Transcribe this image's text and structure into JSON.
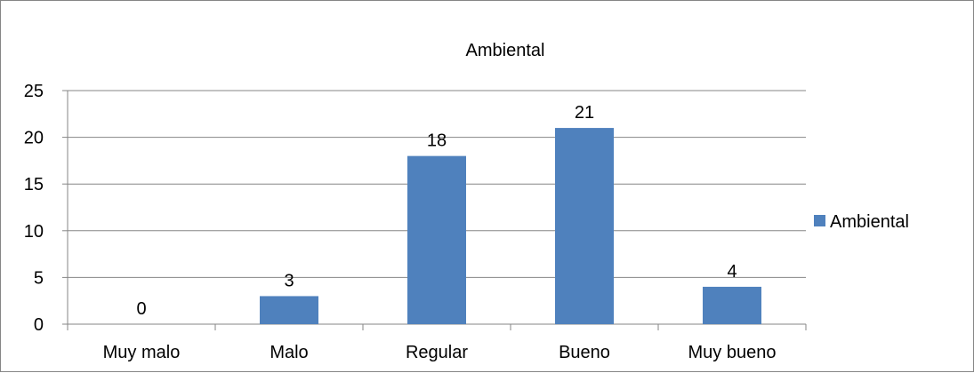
{
  "chart_data": {
    "type": "bar",
    "title": "Ambiental",
    "categories": [
      "Muy malo",
      "Malo",
      "Regular",
      "Bueno",
      "Muy bueno"
    ],
    "series": [
      {
        "name": "Ambiental",
        "values": [
          0,
          3,
          18,
          21,
          4
        ],
        "color": "#4f81bd"
      }
    ],
    "data_labels": [
      "0",
      "3",
      "18",
      "21",
      "4"
    ],
    "y_ticks": [
      "0",
      "5",
      "10",
      "15",
      "20",
      "25"
    ],
    "ylim": [
      0,
      25
    ],
    "grid": true,
    "legend": "right",
    "xlabel": "",
    "ylabel": ""
  }
}
